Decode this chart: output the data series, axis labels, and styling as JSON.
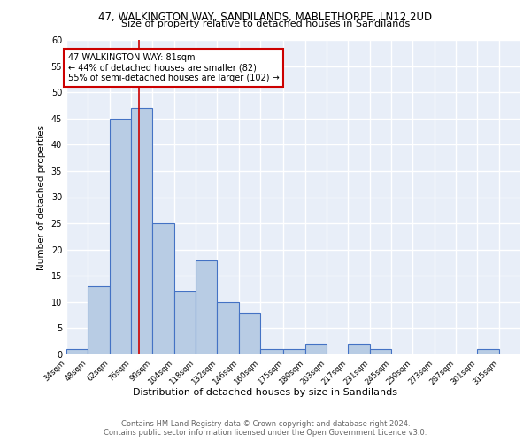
{
  "title1": "47, WALKINGTON WAY, SANDILANDS, MABLETHORPE, LN12 2UD",
  "title2": "Size of property relative to detached houses in Sandilands",
  "xlabel": "Distribution of detached houses by size in Sandilands",
  "ylabel": "Number of detached properties",
  "bin_labels": [
    "34sqm",
    "48sqm",
    "62sqm",
    "76sqm",
    "90sqm",
    "104sqm",
    "118sqm",
    "132sqm",
    "146sqm",
    "160sqm",
    "175sqm",
    "189sqm",
    "203sqm",
    "217sqm",
    "231sqm",
    "245sqm",
    "259sqm",
    "273sqm",
    "287sqm",
    "301sqm",
    "315sqm"
  ],
  "bin_edges": [
    34,
    48,
    62,
    76,
    90,
    104,
    118,
    132,
    146,
    160,
    175,
    189,
    203,
    217,
    231,
    245,
    259,
    273,
    287,
    301,
    315,
    329
  ],
  "bar_heights": [
    1,
    13,
    45,
    47,
    25,
    12,
    18,
    10,
    8,
    1,
    1,
    2,
    0,
    2,
    1,
    0,
    0,
    0,
    0,
    1,
    0
  ],
  "bar_color": "#b8cce4",
  "bar_edge_color": "#4472c4",
  "property_value": 81,
  "vline_color": "#cc0000",
  "annotation_line1": "47 WALKINGTON WAY: 81sqm",
  "annotation_line2": "← 44% of detached houses are smaller (82)",
  "annotation_line3": "55% of semi-detached houses are larger (102) →",
  "annotation_box_color": "white",
  "annotation_box_edge": "#cc0000",
  "ylim": [
    0,
    60
  ],
  "footer1": "Contains HM Land Registry data © Crown copyright and database right 2024.",
  "footer2": "Contains public sector information licensed under the Open Government Licence v3.0.",
  "bg_color": "#e8eef8",
  "grid_color": "white"
}
